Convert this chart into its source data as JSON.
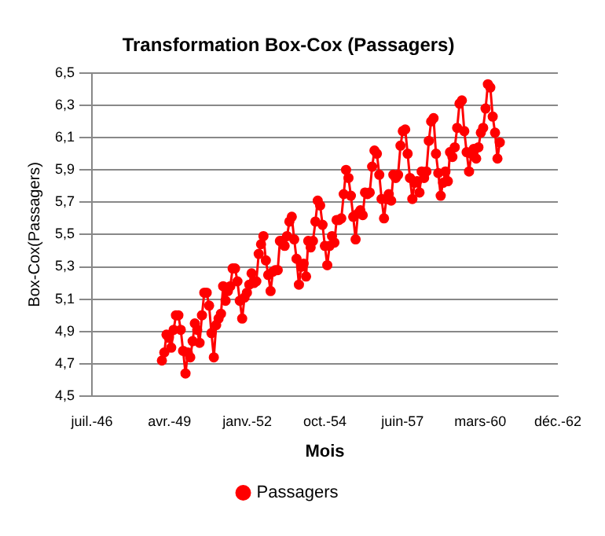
{
  "chart_data": {
    "type": "line",
    "title": "Transformation Box-Cox (Passagers)",
    "xlabel": "Mois",
    "ylabel": "Box-Cox(Passagers)",
    "x": [
      "1949-01",
      "1949-02",
      "1949-03",
      "1949-04",
      "1949-05",
      "1949-06",
      "1949-07",
      "1949-08",
      "1949-09",
      "1949-10",
      "1949-11",
      "1949-12",
      "1950-01",
      "1950-02",
      "1950-03",
      "1950-04",
      "1950-05",
      "1950-06",
      "1950-07",
      "1950-08",
      "1950-09",
      "1950-10",
      "1950-11",
      "1950-12",
      "1951-01",
      "1951-02",
      "1951-03",
      "1951-04",
      "1951-05",
      "1951-06",
      "1951-07",
      "1951-08",
      "1951-09",
      "1951-10",
      "1951-11",
      "1951-12",
      "1952-01",
      "1952-02",
      "1952-03",
      "1952-04",
      "1952-05",
      "1952-06",
      "1952-07",
      "1952-08",
      "1952-09",
      "1952-10",
      "1952-11",
      "1952-12",
      "1953-01",
      "1953-02",
      "1953-03",
      "1953-04",
      "1953-05",
      "1953-06",
      "1953-07",
      "1953-08",
      "1953-09",
      "1953-10",
      "1953-11",
      "1953-12",
      "1954-01",
      "1954-02",
      "1954-03",
      "1954-04",
      "1954-05",
      "1954-06",
      "1954-07",
      "1954-08",
      "1954-09",
      "1954-10",
      "1954-11",
      "1954-12",
      "1955-01",
      "1955-02",
      "1955-03",
      "1955-04",
      "1955-05",
      "1955-06",
      "1955-07",
      "1955-08",
      "1955-09",
      "1955-10",
      "1955-11",
      "1955-12",
      "1956-01",
      "1956-02",
      "1956-03",
      "1956-04",
      "1956-05",
      "1956-06",
      "1956-07",
      "1956-08",
      "1956-09",
      "1956-10",
      "1956-11",
      "1956-12",
      "1957-01",
      "1957-02",
      "1957-03",
      "1957-04",
      "1957-05",
      "1957-06",
      "1957-07",
      "1957-08",
      "1957-09",
      "1957-10",
      "1957-11",
      "1957-12",
      "1958-01",
      "1958-02",
      "1958-03",
      "1958-04",
      "1958-05",
      "1958-06",
      "1958-07",
      "1958-08",
      "1958-09",
      "1958-10",
      "1958-11",
      "1958-12",
      "1959-01",
      "1959-02",
      "1959-03",
      "1959-04",
      "1959-05",
      "1959-06",
      "1959-07",
      "1959-08",
      "1959-09",
      "1959-10",
      "1959-11",
      "1959-12",
      "1960-01",
      "1960-02",
      "1960-03",
      "1960-04",
      "1960-05",
      "1960-06",
      "1960-07",
      "1960-08",
      "1960-09",
      "1960-10",
      "1960-11",
      "1960-12"
    ],
    "series": [
      {
        "name": "Passagers",
        "color": "#ff0000",
        "values": [
          4.72,
          4.77,
          4.88,
          4.86,
          4.8,
          4.91,
          5.0,
          5.0,
          4.91,
          4.78,
          4.64,
          4.77,
          4.74,
          4.84,
          4.95,
          4.91,
          4.83,
          5.0,
          5.14,
          5.14,
          5.06,
          4.89,
          4.74,
          4.94,
          4.98,
          5.01,
          5.18,
          5.09,
          5.15,
          5.18,
          5.29,
          5.29,
          5.21,
          5.09,
          4.98,
          5.11,
          5.14,
          5.19,
          5.26,
          5.2,
          5.21,
          5.38,
          5.44,
          5.49,
          5.34,
          5.25,
          5.15,
          5.27,
          5.28,
          5.28,
          5.46,
          5.46,
          5.43,
          5.49,
          5.58,
          5.61,
          5.47,
          5.35,
          5.19,
          5.3,
          5.32,
          5.24,
          5.46,
          5.42,
          5.46,
          5.58,
          5.71,
          5.68,
          5.56,
          5.43,
          5.31,
          5.43,
          5.49,
          5.45,
          5.59,
          5.59,
          5.6,
          5.75,
          5.9,
          5.85,
          5.74,
          5.61,
          5.47,
          5.63,
          5.65,
          5.62,
          5.76,
          5.75,
          5.76,
          5.92,
          6.02,
          6.0,
          5.87,
          5.72,
          5.6,
          5.72,
          5.75,
          5.71,
          5.87,
          5.85,
          5.87,
          6.05,
          6.14,
          6.15,
          6.0,
          5.85,
          5.72,
          5.82,
          5.83,
          5.76,
          5.89,
          5.85,
          5.89,
          6.08,
          6.2,
          6.22,
          6.0,
          5.88,
          5.74,
          5.82,
          5.89,
          5.83,
          6.01,
          5.98,
          6.04,
          6.16,
          6.31,
          6.33,
          6.14,
          6.01,
          5.89,
          6.0,
          6.03,
          5.97,
          6.04,
          6.13,
          6.16,
          6.28,
          6.43,
          6.41,
          6.23,
          6.13,
          5.97,
          6.07
        ]
      }
    ],
    "xlim": [
      "1946-07-15",
      "1962-12-19"
    ],
    "xticks": [
      {
        "value": "1946-07-15",
        "label": "juil.-46"
      },
      {
        "value": "1949-04-10",
        "label": "avr.-49"
      },
      {
        "value": "1952-01-05",
        "label": "janv.-52"
      },
      {
        "value": "1954-10-01",
        "label": "oct.-54"
      },
      {
        "value": "1957-06-28",
        "label": "juin-57"
      },
      {
        "value": "1960-03-24",
        "label": "mars-60"
      },
      {
        "value": "1962-12-19",
        "label": "déc.-62"
      }
    ],
    "ylim": [
      4.5,
      6.5
    ],
    "yticks": [
      {
        "value": 4.5,
        "label": "4,5"
      },
      {
        "value": 4.7,
        "label": "4,7"
      },
      {
        "value": 4.9,
        "label": "4,9"
      },
      {
        "value": 5.1,
        "label": "5,1"
      },
      {
        "value": 5.3,
        "label": "5,3"
      },
      {
        "value": 5.5,
        "label": "5,5"
      },
      {
        "value": 5.7,
        "label": "5,7"
      },
      {
        "value": 5.9,
        "label": "5,9"
      },
      {
        "value": 6.1,
        "label": "6,1"
      },
      {
        "value": 6.3,
        "label": "6,3"
      },
      {
        "value": 6.5,
        "label": "6,5"
      }
    ],
    "grid": "y",
    "legend": "bottom",
    "marker": "circle",
    "line_style": "solid"
  }
}
